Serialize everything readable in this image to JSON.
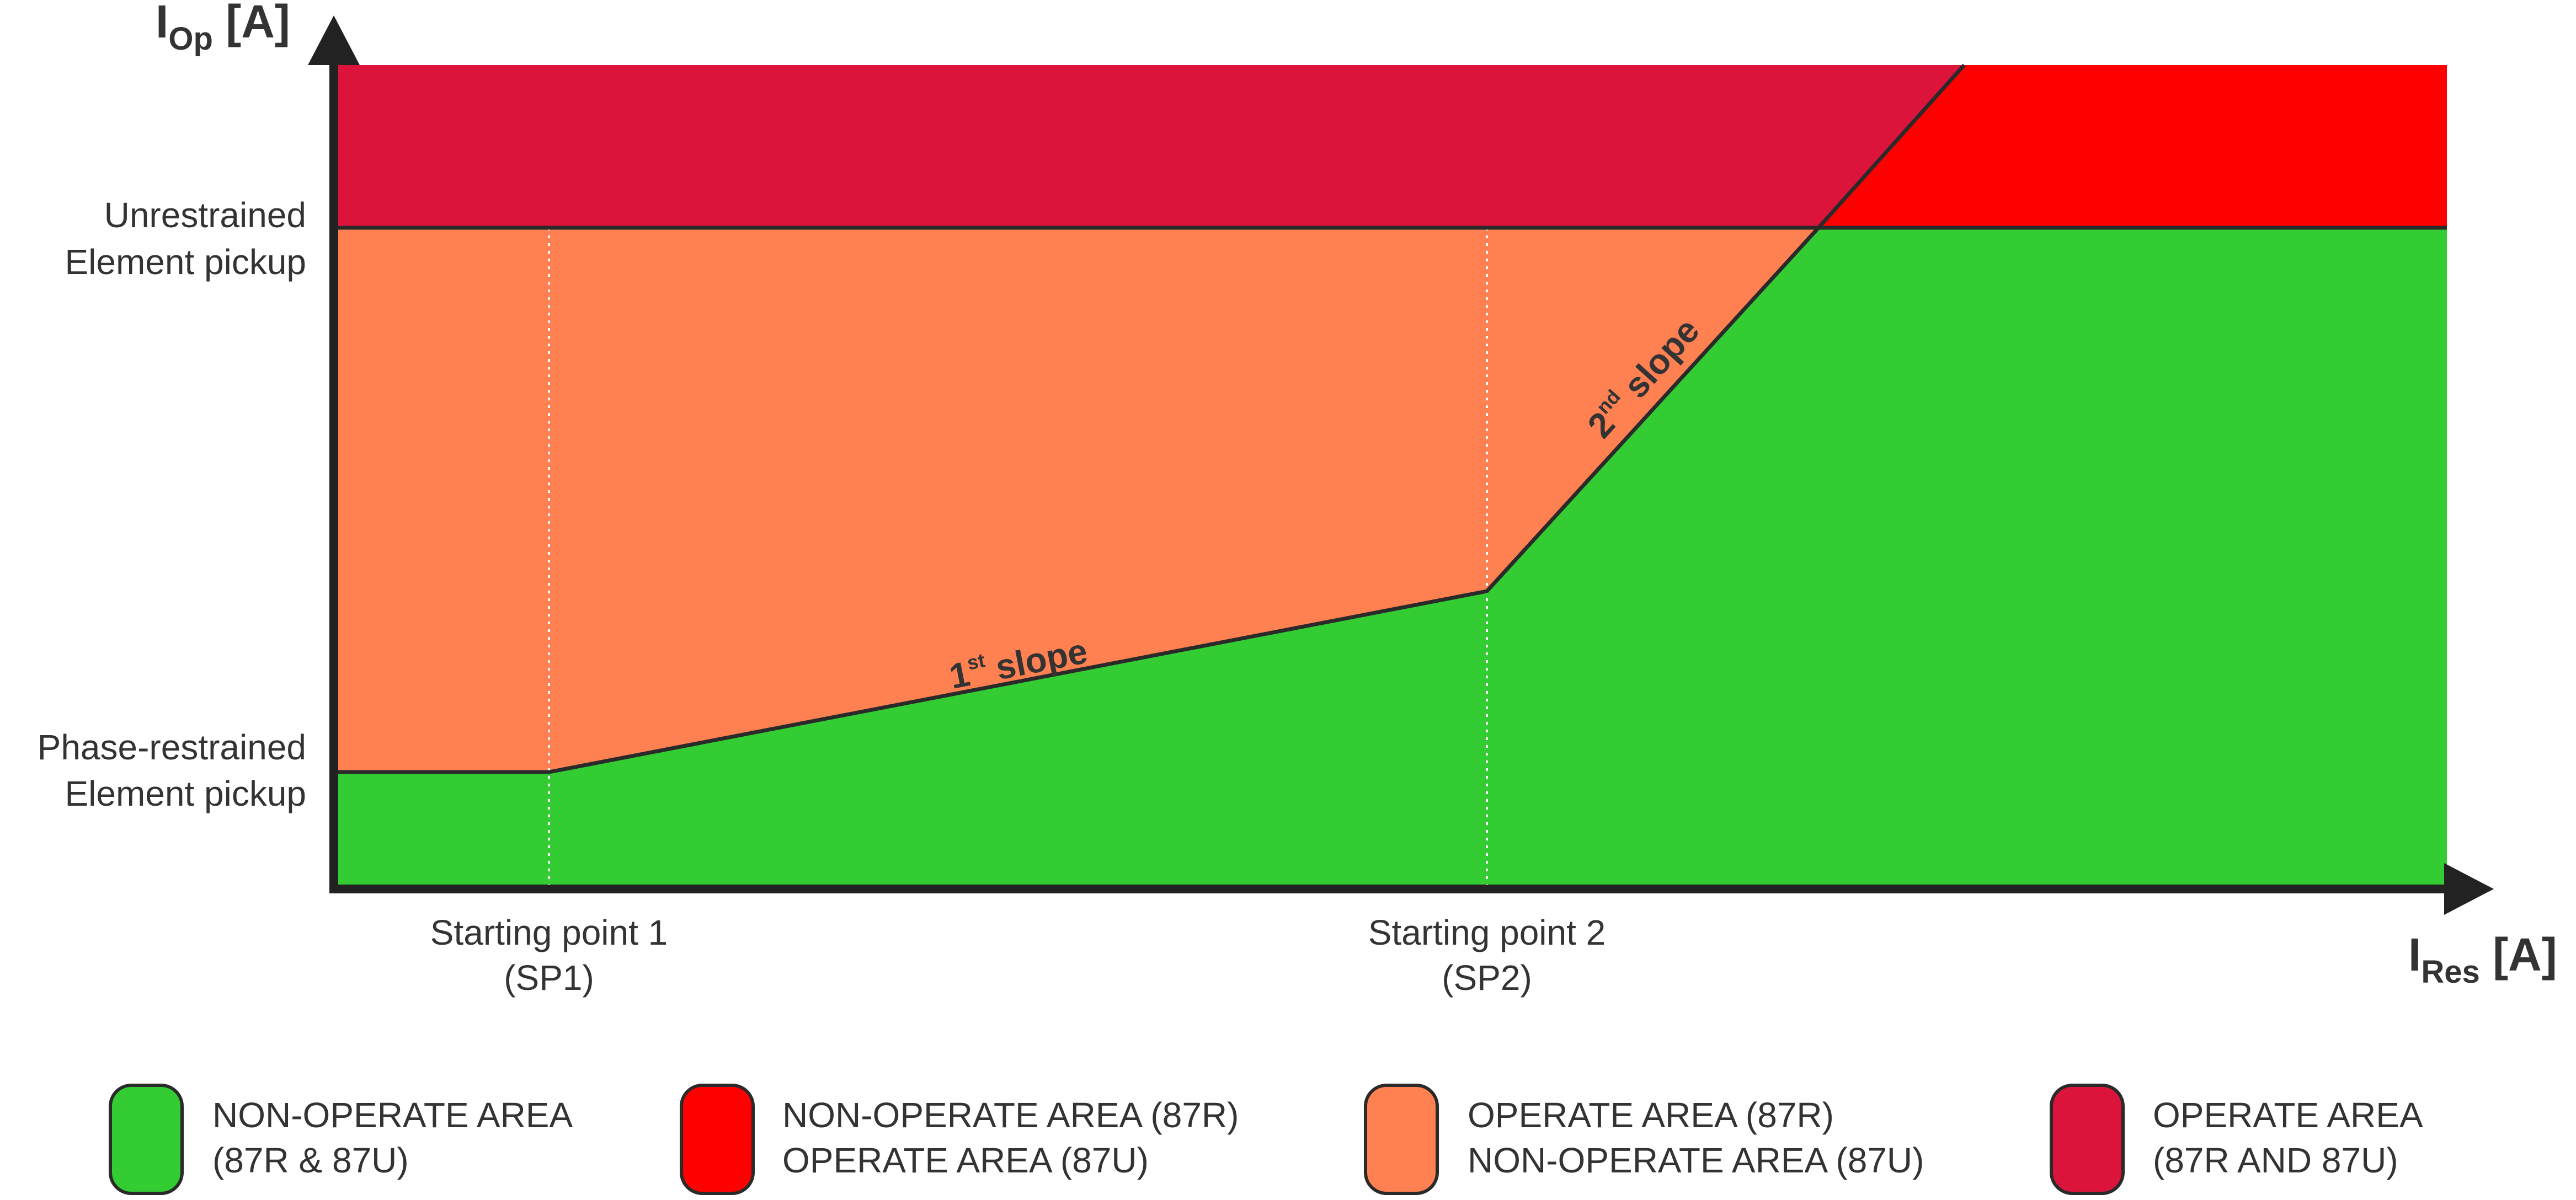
{
  "axes": {
    "y_title_main": "I",
    "y_title_sub": "Op",
    "y_title_unit": " [A]",
    "x_title_main": "I",
    "x_title_sub": "Res",
    "x_title_unit": " [A]"
  },
  "y_labels": {
    "unrestrained_line1": "Unrestrained",
    "unrestrained_line2": "Element pickup",
    "phase_line1": "Phase-restrained",
    "phase_line2": "Element pickup"
  },
  "x_labels": {
    "sp1_line1": "Starting point 1",
    "sp1_line2": "(SP1)",
    "sp2_line1": "Starting point 2",
    "sp2_line2": "(SP2)"
  },
  "slopes": {
    "first_num": "1",
    "first_sup": "st",
    "first_word": " slope",
    "second_num": "2",
    "second_sup": "nd",
    "second_word": " slope"
  },
  "legend": [
    {
      "line1": "NON-OPERATE AREA",
      "line2": "(87R & 87U)",
      "color": "#33cc33"
    },
    {
      "line1": "NON-OPERATE AREA (87R)",
      "line2": "OPERATE AREA (87U)",
      "color": "#ff0000"
    },
    {
      "line1": "OPERATE AREA (87R)",
      "line2": "NON-OPERATE AREA (87U)",
      "color": "#ff8050"
    },
    {
      "line1": "OPERATE AREA",
      "line2": "(87R AND 87U)",
      "color": "#dc143c"
    }
  ],
  "colors": {
    "non_operate_both": "#33cc33",
    "operate_87u_only": "#ff0000",
    "operate_87r_only": "#ff8050",
    "operate_both": "#dc143c",
    "axis": "#222222"
  }
}
